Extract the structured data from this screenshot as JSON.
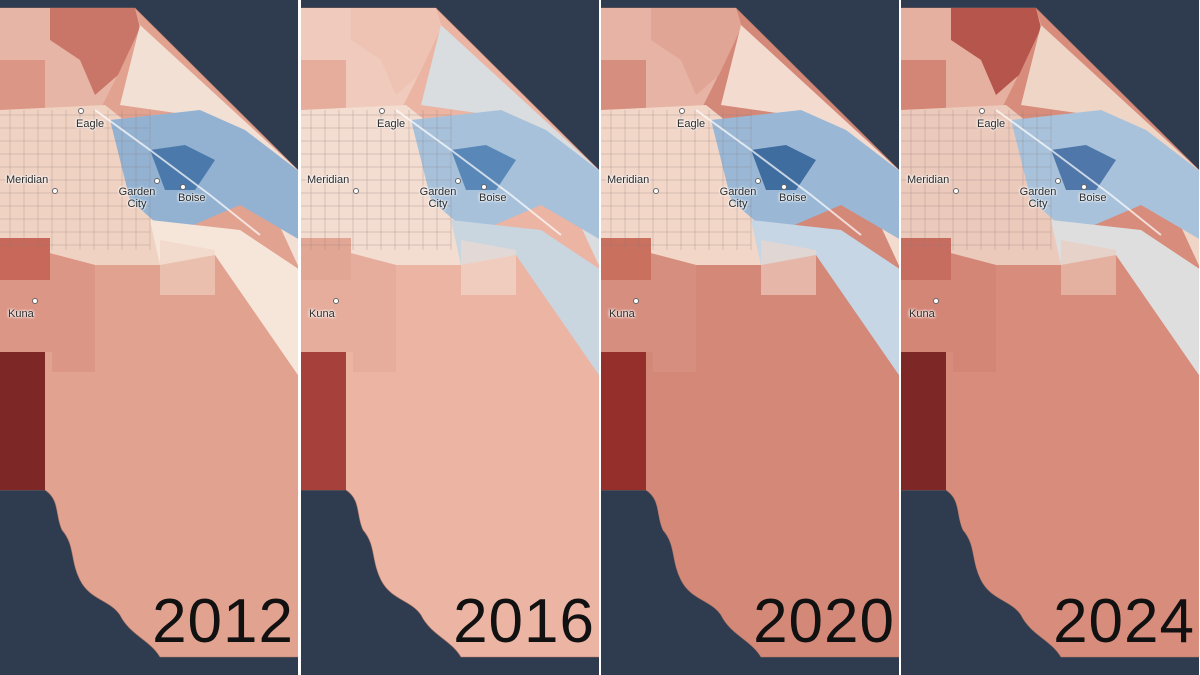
{
  "panels": [
    {
      "year": "2012",
      "labels": [
        "Eagle",
        "Meridian",
        "Garden City",
        "Boise",
        "Kuna"
      ]
    },
    {
      "year": "2016",
      "labels": [
        "Eagle",
        "Meridian",
        "Garden City",
        "Boise",
        "Kuna"
      ]
    },
    {
      "year": "2020",
      "labels": [
        "Eagle",
        "Meridian",
        "Garden City",
        "Boise",
        "Kuna"
      ]
    },
    {
      "year": "2024",
      "labels": [
        "Eagle",
        "Meridian",
        "Garden City",
        "Boise",
        "Kuna"
      ]
    }
  ]
}
